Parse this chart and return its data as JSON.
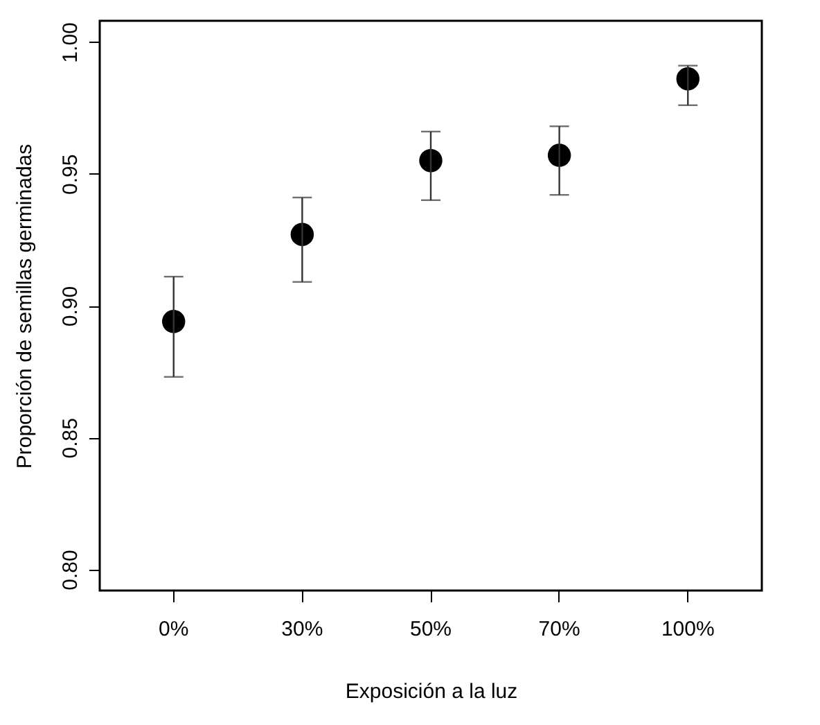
{
  "chart_data": {
    "type": "scatter",
    "xlabel": "Exposición a la luz",
    "ylabel": "Proporción de semillas germinadas",
    "categories": [
      "0%",
      "30%",
      "50%",
      "70%",
      "100%"
    ],
    "values": [
      0.894,
      0.927,
      0.955,
      0.957,
      0.986
    ],
    "errors": [
      [
        0.873,
        0.911
      ],
      [
        0.909,
        0.941
      ],
      [
        0.94,
        0.966
      ],
      [
        0.942,
        0.968
      ],
      [
        0.976,
        0.991
      ]
    ],
    "color": "#000000",
    "marker": "circle",
    "grid": false,
    "ylim": [
      0.792,
      1.008
    ],
    "yticks": [
      {
        "value": 0.8,
        "label": "0.80"
      },
      {
        "value": 0.85,
        "label": "0.85"
      },
      {
        "value": 0.9,
        "label": "0.90"
      },
      {
        "value": 0.95,
        "label": "0.95"
      },
      {
        "value": 1.0,
        "label": "1.00"
      }
    ]
  }
}
